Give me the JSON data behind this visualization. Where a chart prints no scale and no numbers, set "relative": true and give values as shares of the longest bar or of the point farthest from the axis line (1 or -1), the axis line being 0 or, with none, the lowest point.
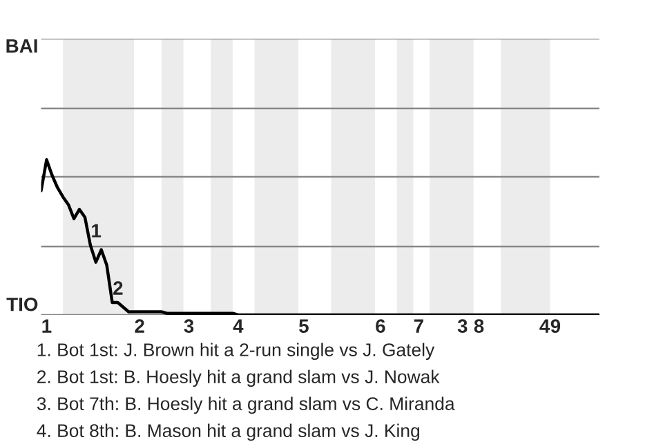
{
  "chart_data": {
    "type": "line",
    "relative": true,
    "categories": [
      null,
      "1",
      null,
      null,
      null,
      null,
      null,
      null,
      null,
      null,
      null,
      null,
      null,
      null,
      null,
      null,
      null,
      null,
      "2",
      null,
      null,
      null,
      null,
      null,
      null,
      null,
      null,
      "3",
      null,
      null,
      null,
      null,
      null,
      null,
      null,
      null,
      "4",
      null,
      null,
      null,
      null,
      null,
      null,
      null,
      null,
      null,
      null,
      null,
      "5",
      null,
      null,
      null,
      null,
      null,
      null,
      null,
      null,
      null,
      null,
      null,
      null,
      null,
      "6",
      null,
      null,
      null,
      null,
      null,
      null,
      "7",
      null,
      null,
      null,
      null,
      null,
      null,
      null,
      "3",
      null,
      null,
      "8",
      null,
      null,
      null,
      null,
      null,
      null,
      null,
      null,
      null,
      null,
      null,
      "4",
      null,
      "9",
      null,
      null,
      null,
      null,
      null,
      null,
      null,
      null
    ],
    "series": [
      {
        "color": "#000000",
        "values": [
          0.8,
          1,
          0.9,
          0.82,
          0.76,
          0.71,
          0.62,
          0.68,
          0.63,
          0.45,
          0.34,
          0.42,
          0.32,
          0.08,
          0.08,
          0.05,
          0.02,
          0.02,
          0.02,
          0.02,
          0.02,
          0.02,
          0.02,
          0.01,
          0.01,
          0.01,
          0.01,
          0.01,
          0.01,
          0.01,
          0.01,
          0.01,
          0.01,
          0.01,
          0.01,
          0.01,
          0,
          0,
          0,
          0,
          0,
          0,
          0,
          0,
          0,
          0,
          0,
          0,
          0,
          0,
          0,
          0,
          0,
          0,
          0,
          0,
          0,
          0,
          0,
          0,
          0,
          0,
          0,
          0,
          0,
          0,
          0,
          0,
          0,
          0,
          0,
          0,
          0,
          0,
          0,
          0,
          0,
          0,
          0,
          0,
          0,
          0,
          0,
          0,
          0,
          0,
          0,
          0,
          0,
          0,
          0,
          0,
          0,
          0,
          0,
          0,
          0,
          0,
          0,
          0,
          0,
          0,
          0
        ]
      }
    ],
    "ref_lines": [
      {
        "axis": "y",
        "value": 0.44,
        "color": "#888888"
      },
      {
        "axis": "y",
        "value": 0.89,
        "color": "#888888"
      },
      {
        "axis": "y",
        "value": 1.33,
        "color": "#888888"
      },
      {
        "axis": "y",
        "value": 1.78,
        "color": "#888888"
      }
    ],
    "legend": false,
    "marker": "none",
    "line_style": "solid",
    "annotations": [
      "BAI",
      "TIO",
      "1. Bot 1st: J. Brown hit a 2-run single vs J. Gately",
      "2. Bot 1st: B. Hoesly hit a grand slam vs J. Nowak",
      "3. Bot 7th: B. Hoesly hit a grand slam vs C. Miranda",
      "4. Bot 8th: B. Mason hit a grand slam vs J. King",
      {
        "text": "1",
        "y": 0.45
      },
      {
        "text": "2",
        "y": 0.08
      }
    ]
  }
}
